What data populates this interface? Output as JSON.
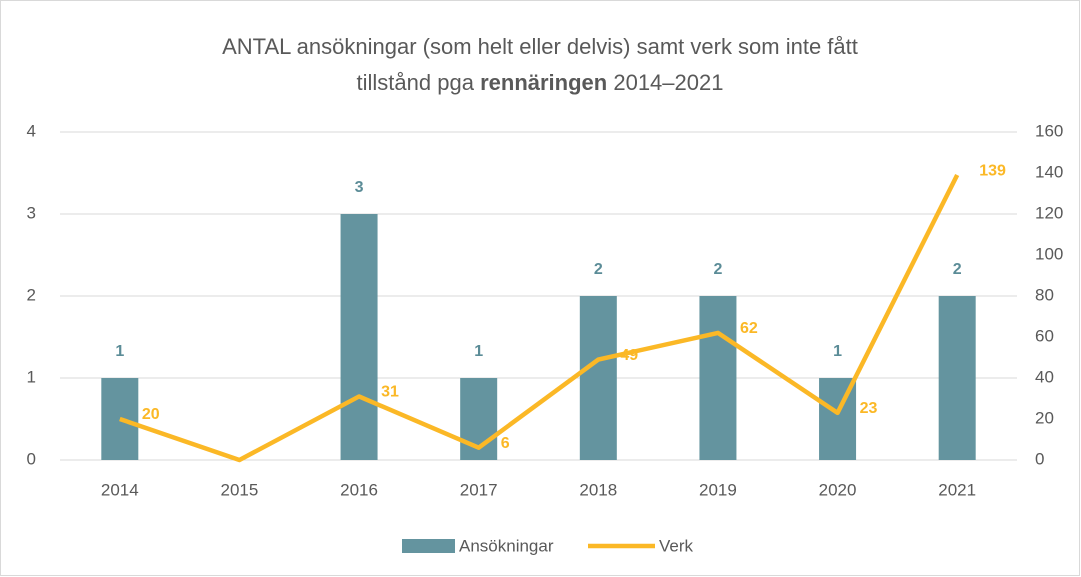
{
  "chart_data": {
    "type": "bar_line",
    "title": [
      "ANTAL ansökningar (som helt eller delvis) samt verk som inte fått",
      "tillstånd pga",
      "rennäringen",
      "2014–2021"
    ],
    "categories": [
      "2014",
      "2015",
      "2016",
      "2017",
      "2018",
      "2019",
      "2020",
      "2021"
    ],
    "series": [
      {
        "name": "Ansökningar",
        "type": "bar",
        "color": "#64949f",
        "values": [
          1,
          null,
          3,
          1,
          2,
          2,
          1,
          2
        ]
      },
      {
        "name": "Verk",
        "type": "line",
        "axis": "y2",
        "color": "#fbb826",
        "values": [
          20,
          0,
          31,
          6,
          49,
          62,
          23,
          139
        ]
      }
    ],
    "ylim": [
      0,
      4
    ],
    "yticks": [
      0,
      1,
      2,
      3,
      4
    ],
    "y2lim": [
      0,
      160
    ],
    "y2ticks": [
      0,
      20,
      40,
      60,
      80,
      100,
      120,
      140,
      160
    ],
    "grid": true,
    "legend": "bottom"
  }
}
